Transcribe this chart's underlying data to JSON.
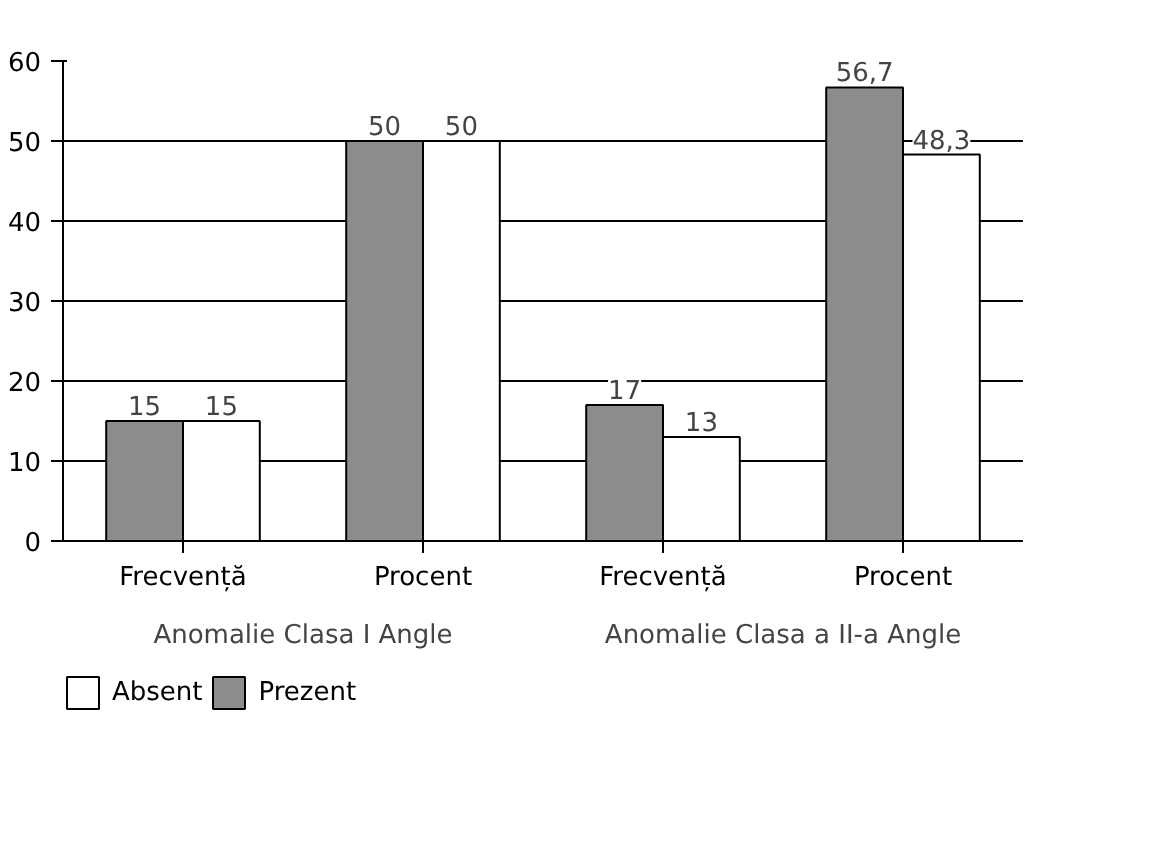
{
  "chart_data": {
    "type": "bar",
    "categories": [
      "Frecvență",
      "Procent",
      "Frecvență",
      "Procent"
    ],
    "series": [
      {
        "name": "Prezent",
        "color": "#8c8c8c",
        "values": [
          15,
          50,
          17,
          56.7
        ],
        "value_labels": [
          "15",
          "50",
          "17",
          "56,7"
        ]
      },
      {
        "name": "Absent",
        "color": "#ffffff",
        "values": [
          15,
          50,
          13,
          48.3
        ],
        "value_labels": [
          "15",
          "50",
          "13",
          "48,3"
        ]
      }
    ],
    "annotations": [
      "Anomalie Clasa I Angle",
      "Anomalie Clasa a II-a Angle"
    ],
    "ylim": [
      0,
      60
    ],
    "yticks": [
      0,
      10,
      20,
      30,
      40,
      50,
      60
    ],
    "grid": "y",
    "legend": "bottom"
  }
}
